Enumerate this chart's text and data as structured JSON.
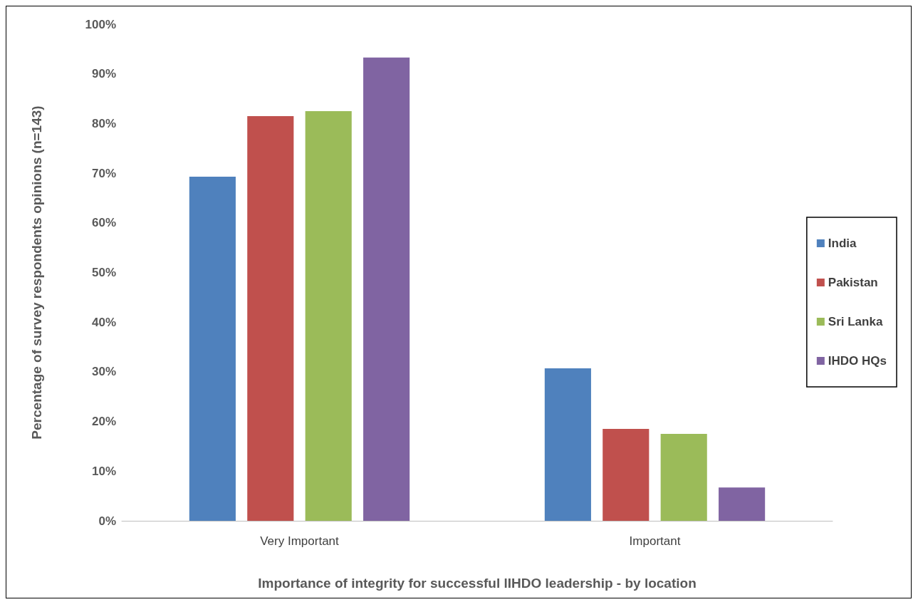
{
  "chart_data": {
    "type": "bar",
    "xlabel": "Importance of integrity for successful lIHDO leadership - by location",
    "ylabel": "Percentage of survey respondents opinions (n=143)",
    "categories": [
      "Very Important",
      "Important"
    ],
    "series": [
      {
        "name": "India",
        "color": "#4f81bd",
        "values": [
          69.3,
          30.7
        ]
      },
      {
        "name": "Pakistan",
        "color": "#c0504d",
        "values": [
          81.5,
          18.5
        ]
      },
      {
        "name": "Sri Lanka",
        "color": "#9bbb59",
        "values": [
          82.5,
          17.5
        ]
      },
      {
        "name": "IHDO HQs",
        "color": "#8064a2",
        "values": [
          93.3,
          6.7
        ]
      }
    ],
    "ylim": [
      0,
      100
    ],
    "yticks": [
      {
        "value": 0,
        "label": "0%"
      },
      {
        "value": 10,
        "label": "10%"
      },
      {
        "value": 20,
        "label": "20%"
      },
      {
        "value": 30,
        "label": "30%"
      },
      {
        "value": 40,
        "label": "40%"
      },
      {
        "value": 50,
        "label": "50%"
      },
      {
        "value": 60,
        "label": "60%"
      },
      {
        "value": 70,
        "label": "70%"
      },
      {
        "value": 80,
        "label": "80%"
      },
      {
        "value": 90,
        "label": "90%"
      },
      {
        "value": 100,
        "label": "100%"
      }
    ],
    "grid": false,
    "legend": "right"
  }
}
